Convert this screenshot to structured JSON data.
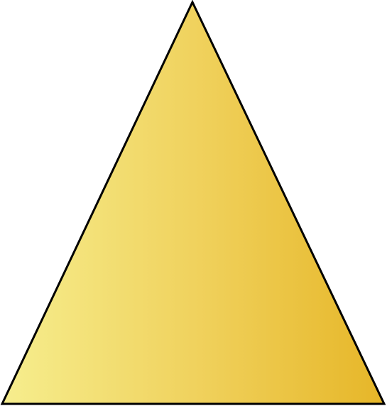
{
  "shape": {
    "type": "triangle",
    "gradient_colors": [
      "#F6EE8E",
      "#F0D25E",
      "#E6B628"
    ],
    "stroke_color": "#000000"
  }
}
